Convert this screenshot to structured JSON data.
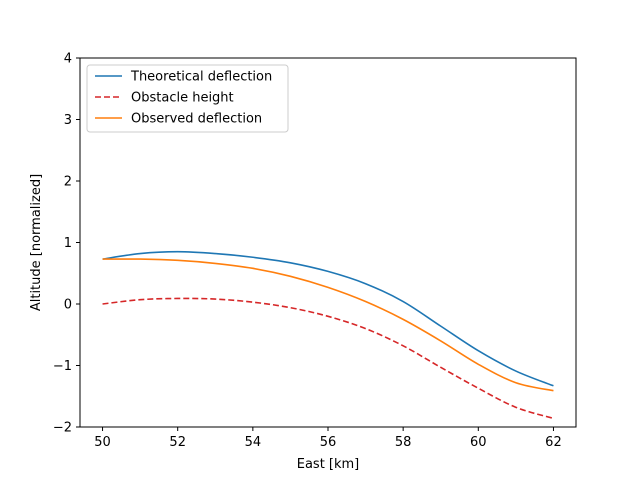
{
  "chart_data": {
    "type": "line",
    "title": "",
    "xlabel": "East [km]",
    "ylabel": "Altitude [normalized]",
    "xlim": [
      49.4,
      62.6
    ],
    "ylim": [
      -2,
      4
    ],
    "xticks": [
      50,
      52,
      54,
      56,
      58,
      60,
      62
    ],
    "yticks": [
      -2,
      -1,
      0,
      1,
      2,
      3,
      4
    ],
    "xtick_labels": [
      "50",
      "52",
      "54",
      "56",
      "58",
      "60",
      "62"
    ],
    "ytick_labels": [
      "−2",
      "−1",
      "0",
      "1",
      "2",
      "3",
      "4"
    ],
    "grid": false,
    "legend_position": "top-left",
    "series": [
      {
        "name": "Theoretical deflection",
        "color": "#1f77b4",
        "dash": "solid",
        "x": [
          50,
          51,
          52,
          53,
          54,
          55,
          56,
          57,
          58,
          59,
          60,
          61,
          62
        ],
        "y": [
          0.73,
          0.82,
          0.85,
          0.82,
          0.76,
          0.67,
          0.53,
          0.33,
          0.04,
          -0.36,
          -0.76,
          -1.09,
          -1.33
        ]
      },
      {
        "name": "Obstacle height",
        "color": "#d62728",
        "dash": "dashed",
        "x": [
          50,
          51,
          52,
          53,
          54,
          55,
          56,
          57,
          58,
          59,
          60,
          61,
          62
        ],
        "y": [
          0.0,
          0.07,
          0.09,
          0.08,
          0.03,
          -0.06,
          -0.2,
          -0.4,
          -0.68,
          -1.03,
          -1.37,
          -1.68,
          -1.86
        ]
      },
      {
        "name": "Observed deflection",
        "color": "#ff7f0e",
        "dash": "solid",
        "x": [
          50,
          51,
          52,
          53,
          54,
          55,
          56,
          57,
          58,
          59,
          60,
          61,
          62
        ],
        "y": [
          0.73,
          0.73,
          0.71,
          0.66,
          0.58,
          0.45,
          0.27,
          0.04,
          -0.25,
          -0.6,
          -0.98,
          -1.28,
          -1.41
        ]
      }
    ]
  }
}
